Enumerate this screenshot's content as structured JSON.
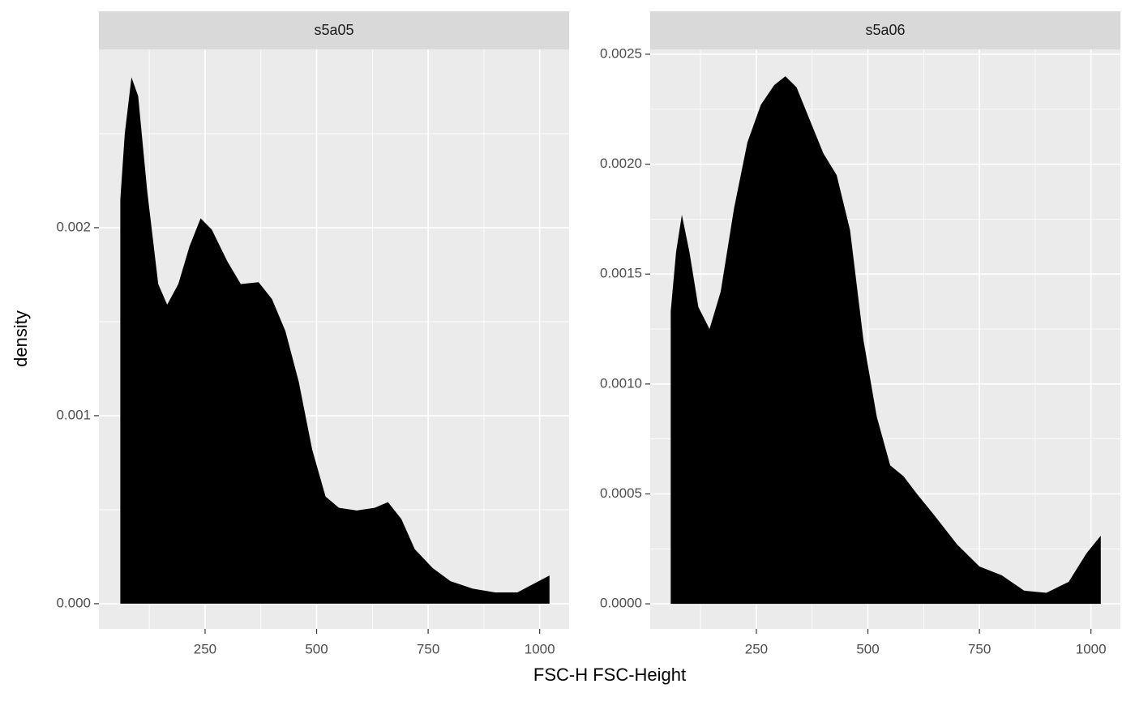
{
  "x_label": "FSC-H FSC-Height",
  "y_label": "density",
  "chart_data": [
    {
      "type": "area",
      "title": "s5a05",
      "color": "#000000",
      "grid": true,
      "x": [
        60,
        70,
        85,
        100,
        120,
        145,
        165,
        190,
        215,
        240,
        265,
        300,
        330,
        370,
        400,
        430,
        460,
        490,
        520,
        550,
        590,
        630,
        660,
        690,
        720,
        760,
        800,
        850,
        900,
        950,
        990,
        1022
      ],
      "values": [
        0.00215,
        0.0025,
        0.0028,
        0.0027,
        0.0022,
        0.0017,
        0.00159,
        0.0017,
        0.0019,
        0.00205,
        0.00199,
        0.00182,
        0.0017,
        0.00171,
        0.00162,
        0.00145,
        0.00118,
        0.00082,
        0.00057,
        0.00051,
        0.000496,
        0.00051,
        0.00054,
        0.00045,
        0.00029,
        0.00019,
        0.00012,
        8e-05,
        6e-05,
        6e-05,
        0.00011,
        0.00015
      ],
      "xlim": [
        12,
        1066
      ],
      "ylim": [
        -0.000134,
        0.002948
      ],
      "xticks": [
        250,
        500,
        750,
        1000
      ],
      "minor_xticks": [
        125,
        375,
        625,
        875
      ],
      "yticks": [
        {
          "value": 0,
          "label": "0.000"
        },
        0.001,
        0.002
      ],
      "minor_yticks": [
        0.0005,
        0.0015,
        0.0025
      ]
    },
    {
      "type": "area",
      "title": "s5a06",
      "color": "#000000",
      "grid": true,
      "x": [
        58,
        70,
        83,
        100,
        120,
        145,
        170,
        200,
        230,
        260,
        290,
        315,
        340,
        370,
        400,
        430,
        460,
        490,
        520,
        550,
        580,
        610,
        650,
        700,
        750,
        800,
        850,
        900,
        950,
        990,
        1022
      ],
      "values": [
        0.00133,
        0.0016,
        0.00177,
        0.0016,
        0.00135,
        0.00125,
        0.00142,
        0.0018,
        0.0021,
        0.00227,
        0.00236,
        0.0024,
        0.00235,
        0.0022,
        0.00205,
        0.00195,
        0.0017,
        0.0012,
        0.00085,
        0.00063,
        0.00058,
        0.0005,
        0.0004,
        0.00027,
        0.00017,
        0.00013,
        6e-05,
        5e-05,
        0.0001,
        0.00023,
        0.00031
      ],
      "xlim": [
        12,
        1066
      ],
      "ylim": [
        -0.000114,
        0.002522
      ],
      "xticks": [
        250,
        500,
        750,
        1000
      ],
      "minor_xticks": [
        125,
        375,
        625,
        875
      ],
      "yticks": [
        {
          "value": 0,
          "label": "0.0000"
        },
        {
          "value": 0.0005,
          "label": "0.0005"
        },
        {
          "value": 0.001,
          "label": "0.0010"
        },
        {
          "value": 0.0015,
          "label": "0.0015"
        },
        {
          "value": 0.002,
          "label": "0.0020"
        },
        {
          "value": 0.0025,
          "label": "0.0025"
        }
      ],
      "minor_yticks": [
        0.00025,
        0.00075,
        0.00125,
        0.00175,
        0.00225
      ]
    }
  ]
}
